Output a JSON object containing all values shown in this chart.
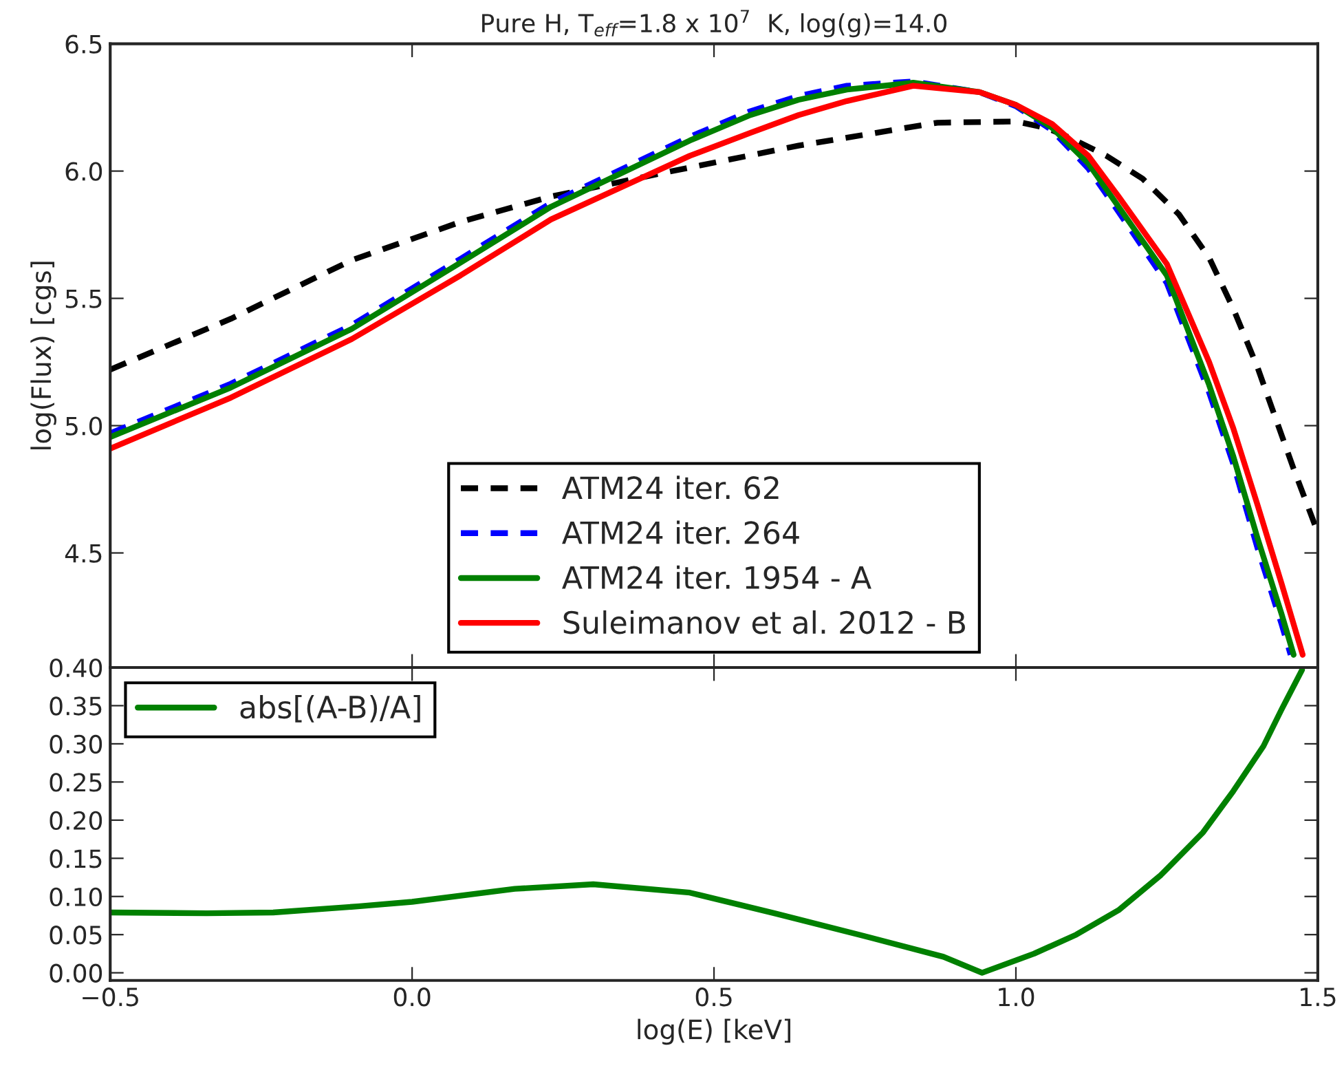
{
  "chart_data": [
    {
      "type": "line",
      "title": "Pure H, T$_{eff}$=1.8 x 10$^{7}$  K, log(g)=14.0",
      "ylabel": "log(Flux) [cgs]",
      "xlim": [
        -0.5,
        1.5
      ],
      "ylim": [
        4.05,
        6.5
      ],
      "xticks": [
        -0.5,
        0.0,
        0.5,
        1.0,
        1.5
      ],
      "yticks": [
        {
          "value": 4.5,
          "label": "4.5"
        },
        {
          "value": 5.0,
          "label": "5.0"
        },
        {
          "value": 5.5,
          "label": "5.5"
        },
        {
          "value": 6.0,
          "label": "6.0"
        },
        {
          "value": 6.5,
          "label": "6.5"
        }
      ],
      "tick_labels": "y",
      "legend": "bottom",
      "series": [
        {
          "name": "ATM24 iter. 62",
          "color": "#000000",
          "line_style": "dashed",
          "x": [
            -0.5,
            -0.3,
            -0.1,
            0.08,
            0.23,
            0.41,
            0.64,
            0.87,
            1.0,
            1.05,
            1.09,
            1.15,
            1.21,
            1.27,
            1.32,
            1.36,
            1.4,
            1.43,
            1.46,
            1.5
          ],
          "values": [
            5.22,
            5.42,
            5.65,
            5.8,
            5.9,
            5.99,
            6.1,
            6.19,
            6.195,
            6.17,
            6.13,
            6.06,
            5.97,
            5.83,
            5.66,
            5.46,
            5.23,
            5.03,
            4.83,
            4.58
          ]
        },
        {
          "name": "ATM24 iter. 264",
          "color": "#0000ff",
          "line_style": "dashed",
          "x": [
            -0.5,
            -0.3,
            -0.1,
            0.08,
            0.23,
            0.46,
            0.56,
            0.64,
            0.72,
            0.83,
            0.94,
            1.0,
            1.06,
            1.12,
            1.17,
            1.25,
            1.32,
            1.36,
            1.4,
            1.44,
            1.455
          ],
          "values": [
            4.97,
            5.165,
            5.395,
            5.655,
            5.875,
            6.135,
            6.235,
            6.295,
            6.335,
            6.352,
            6.31,
            6.255,
            6.16,
            6.01,
            5.84,
            5.56,
            5.13,
            4.85,
            4.52,
            4.22,
            4.1
          ]
        },
        {
          "name": "ATM24 iter. 1954 - A",
          "color": "#008000",
          "line_style": "solid",
          "x": [
            -0.5,
            -0.3,
            -0.1,
            0.08,
            0.23,
            0.46,
            0.56,
            0.64,
            0.72,
            0.83,
            0.94,
            1.0,
            1.06,
            1.12,
            1.17,
            1.25,
            1.32,
            1.36,
            1.4,
            1.44,
            1.46
          ],
          "values": [
            4.955,
            5.15,
            5.38,
            5.64,
            5.86,
            6.12,
            6.22,
            6.28,
            6.32,
            6.347,
            6.31,
            6.26,
            6.17,
            6.03,
            5.86,
            5.59,
            5.16,
            4.88,
            4.56,
            4.26,
            4.1
          ]
        },
        {
          "name": "Suleimanov et al. 2012 - B",
          "color": "#ff0000",
          "line_style": "solid",
          "x": [
            -0.5,
            -0.3,
            -0.1,
            0.08,
            0.23,
            0.46,
            0.56,
            0.64,
            0.72,
            0.83,
            0.94,
            1.0,
            1.06,
            1.12,
            1.17,
            1.25,
            1.32,
            1.36,
            1.4,
            1.44,
            1.475
          ],
          "values": [
            4.91,
            5.11,
            5.34,
            5.59,
            5.81,
            6.06,
            6.15,
            6.22,
            6.275,
            6.335,
            6.31,
            6.26,
            6.185,
            6.06,
            5.9,
            5.635,
            5.25,
            4.99,
            4.69,
            4.38,
            4.1
          ]
        }
      ]
    },
    {
      "type": "line",
      "xlabel": "log(E) [keV]",
      "xlim": [
        -0.5,
        1.5
      ],
      "ylim": [
        -0.01,
        0.4
      ],
      "xticks": [
        {
          "value": -0.5,
          "label": "−0.5"
        },
        {
          "value": 0.0,
          "label": "0.0"
        },
        {
          "value": 0.5,
          "label": "0.5"
        },
        {
          "value": 1.0,
          "label": "1.0"
        },
        {
          "value": 1.5,
          "label": "1.5"
        }
      ],
      "yticks": [
        {
          "value": 0.0,
          "label": "0.00"
        },
        {
          "value": 0.05,
          "label": "0.05"
        },
        {
          "value": 0.1,
          "label": "0.10"
        },
        {
          "value": 0.15,
          "label": "0.15"
        },
        {
          "value": 0.2,
          "label": "0.20"
        },
        {
          "value": 0.25,
          "label": "0.25"
        },
        {
          "value": 0.3,
          "label": "0.30"
        },
        {
          "value": 0.35,
          "label": "0.35"
        },
        {
          "value": 0.4,
          "label": "0.40"
        }
      ],
      "legend": "top left",
      "series": [
        {
          "name": "abs[(A-B)/A]",
          "color": "#008000",
          "line_style": "solid",
          "x": [
            -0.5,
            -0.34,
            -0.23,
            -0.09,
            0.0,
            0.17,
            0.3,
            0.46,
            0.6,
            0.74,
            0.88,
            0.944,
            1.03,
            1.1,
            1.17,
            1.24,
            1.31,
            1.36,
            1.41,
            1.44,
            1.474
          ],
          "values": [
            0.079,
            0.078,
            0.079,
            0.087,
            0.093,
            0.11,
            0.116,
            0.105,
            0.078,
            0.05,
            0.021,
            0.0,
            0.025,
            0.05,
            0.082,
            0.128,
            0.184,
            0.238,
            0.297,
            0.345,
            0.397
          ]
        }
      ]
    }
  ]
}
